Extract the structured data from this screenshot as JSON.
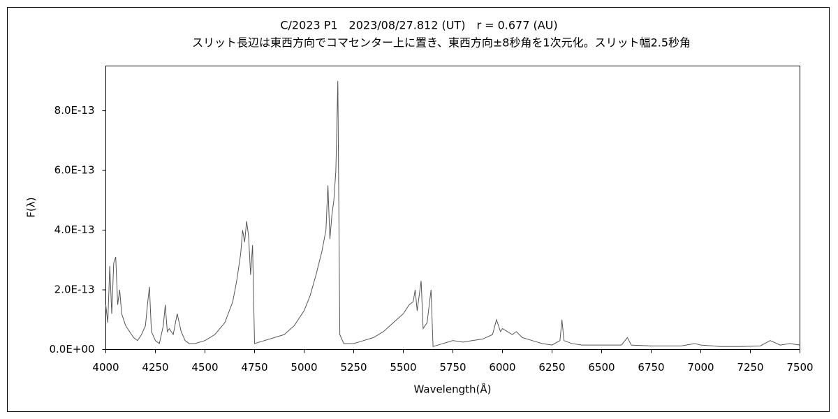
{
  "chart_data": {
    "type": "line",
    "title": "C/2023 P1　2023/08/27.812 (UT)　r = 0.677 (AU)",
    "subtitle": "スリット長辺は東西方向でコマセンター上に置き、東西方向±8秒角を1次元化。スリット幅2.5秒角",
    "x_label": "Wavelength(Å)",
    "y_label": "F(λ)",
    "xlim": [
      4000,
      7500
    ],
    "xticks": [
      4000,
      4250,
      4500,
      4750,
      5000,
      5250,
      5500,
      5750,
      6000,
      6250,
      6500,
      6750,
      7000,
      7250,
      7500
    ],
    "ylim": [
      0,
      9.5e-13
    ],
    "yticks": [
      {
        "value": 0,
        "label": "0.0E+00"
      },
      {
        "value": 2e-13,
        "label": "2.0E-13"
      },
      {
        "value": 4e-13,
        "label": "4.0E-13"
      },
      {
        "value": 6e-13,
        "label": "6.0E-13"
      },
      {
        "value": 8e-13,
        "label": "8.0E-13"
      }
    ],
    "grid": false,
    "x": [
      4000,
      4010,
      4020,
      4030,
      4040,
      4050,
      4060,
      4070,
      4080,
      4100,
      4120,
      4140,
      4160,
      4180,
      4200,
      4210,
      4220,
      4230,
      4250,
      4270,
      4290,
      4300,
      4310,
      4320,
      4340,
      4360,
      4380,
      4400,
      4420,
      4450,
      4500,
      4550,
      4600,
      4640,
      4660,
      4680,
      4690,
      4700,
      4710,
      4720,
      4730,
      4740,
      4750,
      4800,
      4850,
      4900,
      4950,
      5000,
      5030,
      5060,
      5090,
      5110,
      5120,
      5130,
      5140,
      5150,
      5160,
      5170,
      5180,
      5200,
      5250,
      5300,
      5350,
      5400,
      5450,
      5500,
      5530,
      5550,
      5560,
      5570,
      5590,
      5600,
      5620,
      5640,
      5650,
      5700,
      5750,
      5800,
      5850,
      5900,
      5950,
      5970,
      5990,
      6000,
      6050,
      6070,
      6100,
      6150,
      6200,
      6250,
      6290,
      6300,
      6310,
      6350,
      6400,
      6500,
      6600,
      6630,
      6650,
      6750,
      6900,
      6970,
      7000,
      7100,
      7200,
      7300,
      7350,
      7400,
      7450,
      7500
    ],
    "series": [
      {
        "name": "F(λ)",
        "color": "#555555",
        "values": [
          1.5e-13,
          9e-14,
          2.8e-13,
          1.2e-13,
          2.9e-13,
          3.1e-13,
          1.5e-13,
          2e-13,
          1.2e-13,
          8e-14,
          6e-14,
          4e-14,
          3e-14,
          5e-14,
          8e-14,
          1.5e-13,
          2.1e-13,
          6e-14,
          3e-14,
          2e-14,
          8e-14,
          1.5e-13,
          6e-14,
          7e-14,
          5e-14,
          1.2e-13,
          6e-14,
          3e-14,
          2e-14,
          2e-14,
          3e-14,
          5e-14,
          9e-14,
          1.6e-13,
          2.3e-13,
          3.2e-13,
          4e-13,
          3.6e-13,
          4.3e-13,
          3.8e-13,
          2.5e-13,
          3.5e-13,
          2e-14,
          3e-14,
          4e-14,
          5e-14,
          8e-14,
          1.3e-13,
          1.8e-13,
          2.5e-13,
          3.3e-13,
          4e-13,
          5.5e-13,
          3.7e-13,
          4.5e-13,
          5e-13,
          6e-13,
          9e-13,
          5e-14,
          2e-14,
          2e-14,
          3e-14,
          4e-14,
          6e-14,
          9e-14,
          1.2e-13,
          1.5e-13,
          1.6e-13,
          2e-13,
          1.3e-13,
          2.3e-13,
          7e-14,
          9e-14,
          2e-13,
          1e-14,
          2e-14,
          3e-14,
          2.5e-14,
          3e-14,
          3.5e-14,
          5e-14,
          1e-13,
          6e-14,
          7e-14,
          5e-14,
          6e-14,
          4e-14,
          3e-14,
          2e-14,
          1.5e-14,
          3e-14,
          1e-13,
          3e-14,
          2e-14,
          1.5e-14,
          1.5e-14,
          1.5e-14,
          4e-14,
          1.5e-14,
          1.2e-14,
          1.2e-14,
          2e-14,
          1.5e-14,
          1e-14,
          1e-14,
          1.2e-14,
          3e-14,
          1.5e-14,
          2e-14,
          1.5e-14
        ]
      }
    ]
  }
}
